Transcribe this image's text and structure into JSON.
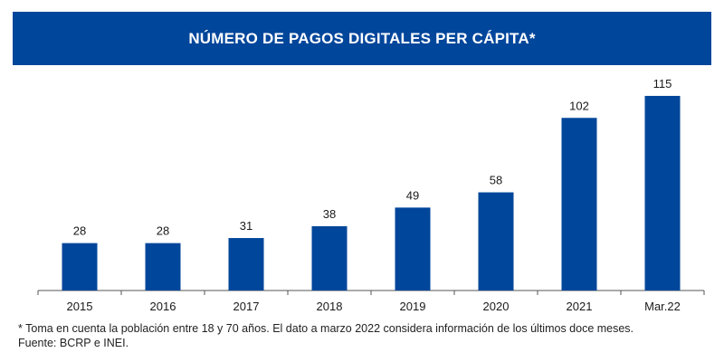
{
  "title": "NÚMERO DE PAGOS DIGITALES PER CÁPITA*",
  "footnote": "* Toma en cuenta la población entre 18 y 70 años. El dato a marzo 2022 considera información de los últimos doce meses.",
  "source": "Fuente: BCRP e INEI.",
  "colors": {
    "banner": "#00469b",
    "bar": "#00469b",
    "axis": "#555555"
  },
  "chart_data": {
    "type": "bar",
    "categories": [
      "2015",
      "2016",
      "2017",
      "2018",
      "2019",
      "2020",
      "2021",
      "Mar.22"
    ],
    "values": [
      28,
      28,
      31,
      38,
      49,
      58,
      102,
      115
    ],
    "data_labels": [
      "28",
      "28",
      "31",
      "38",
      "49",
      "58",
      "102",
      "115"
    ],
    "title": "NÚMERO DE PAGOS DIGITALES PER CÁPITA*",
    "xlabel": "",
    "ylabel": "",
    "ylim": [
      0,
      120
    ],
    "grid": false,
    "legend": "none"
  }
}
